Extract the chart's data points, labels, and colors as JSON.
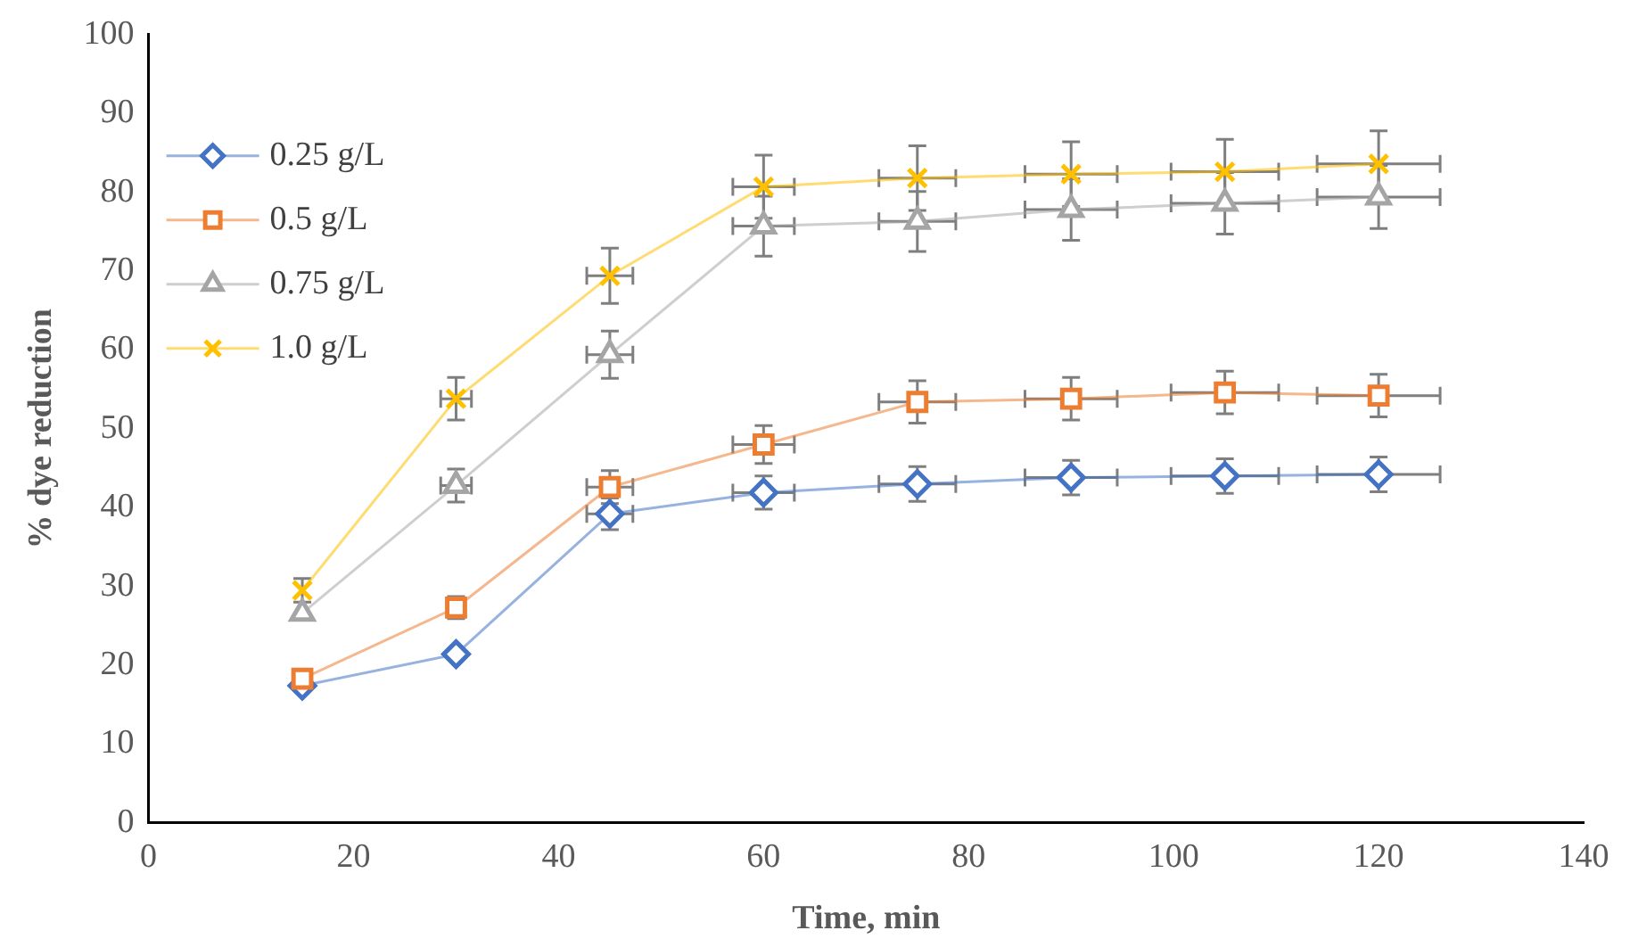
{
  "chart_data": {
    "type": "line",
    "xlabel": "Time, min",
    "ylabel": "% dye reduction",
    "x": [
      15,
      30,
      45,
      60,
      75,
      90,
      105,
      120
    ],
    "xlim": [
      0,
      140
    ],
    "xticks": [
      0,
      20,
      40,
      60,
      80,
      100,
      120,
      140
    ],
    "ylim": [
      0,
      100
    ],
    "yticks": [
      0,
      10,
      20,
      30,
      40,
      50,
      60,
      70,
      80,
      90,
      100
    ],
    "grid": false,
    "legend": "top left",
    "line_style": "solid",
    "series": [
      {
        "name": "0.25 g/L",
        "color": "#4472c4",
        "marker": "diamond",
        "values": [
          17.4,
          21.4,
          39.2,
          41.9,
          43.0,
          43.8,
          44.0,
          44.2
        ],
        "errors": [
          null,
          null,
          2.0,
          2.1,
          2.2,
          2.2,
          2.2,
          2.2
        ],
        "xerrors": [
          null,
          null,
          2.25,
          3,
          3.75,
          4.5,
          5.25,
          6
        ]
      },
      {
        "name": "0.5 g/L",
        "color": "#ed7d31",
        "marker": "square",
        "values": [
          18.3,
          27.3,
          42.6,
          48.0,
          53.4,
          53.8,
          54.6,
          54.2
        ],
        "errors": [
          null,
          1.4,
          2.1,
          2.4,
          2.7,
          2.7,
          2.7,
          2.7
        ],
        "xerrors": [
          null,
          null,
          2.25,
          3,
          3.75,
          4.5,
          5.25,
          6
        ]
      },
      {
        "name": "0.75 g/L",
        "color": "#a5a5a5",
        "marker": "triangle",
        "values": [
          26.6,
          42.8,
          59.4,
          75.7,
          76.3,
          77.8,
          78.6,
          79.4
        ],
        "errors": [
          null,
          2.1,
          3.0,
          3.8,
          3.8,
          3.9,
          3.9,
          4.0
        ],
        "xerrors": [
          null,
          1.5,
          2.25,
          3,
          3.75,
          4.5,
          5.25,
          6
        ]
      },
      {
        "name": "1.0 g/L",
        "color": "#ffc000",
        "marker": "cross",
        "values": [
          29.5,
          53.8,
          69.4,
          80.7,
          81.8,
          82.3,
          82.6,
          83.6
        ],
        "errors": [
          1.5,
          2.7,
          3.5,
          4.0,
          4.1,
          4.1,
          4.1,
          4.2
        ],
        "xerrors": [
          null,
          1.5,
          2.25,
          3,
          3.75,
          4.5,
          5.25,
          6
        ]
      }
    ]
  }
}
